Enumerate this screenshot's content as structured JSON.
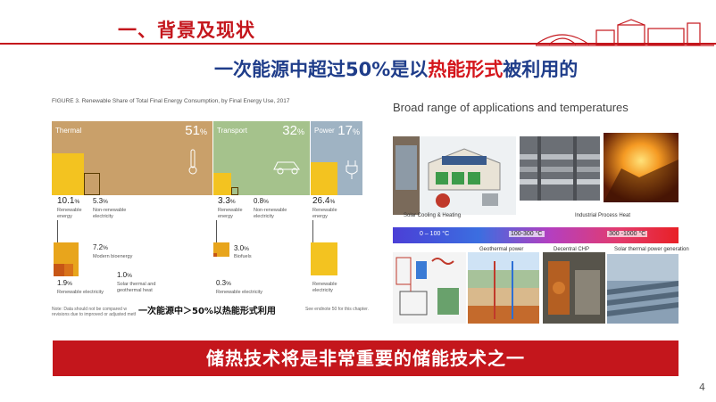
{
  "header": {
    "title": "一、背景及现状"
  },
  "subtitle": {
    "prefix": "一次能源中超过50%是以",
    "highlight": "热能形式",
    "suffix": "被利用的"
  },
  "figure": {
    "title": "FIGURE 3.   Renewable Share of Total Final Energy Consumption, by Final Energy Use, 2017",
    "panels": [
      {
        "name": "Thermal",
        "percent": "51",
        "color": "#c9a06a"
      },
      {
        "name": "Transport",
        "percent": "32",
        "color": "#a5c28c"
      },
      {
        "name": "Power",
        "percent": "17",
        "color": "#9fb3c3"
      }
    ],
    "pct_sign": "%",
    "thermal": {
      "renewable": {
        "value": "10.1",
        "label1": "Renewable",
        "label2": "energy"
      },
      "nonrenewable": {
        "value": "5.3",
        "label1": "Non-renewable",
        "label2": "electricity"
      },
      "bioenergy": {
        "value": "7.2",
        "label": "Modern bioenergy"
      },
      "solar": {
        "value": "1.0",
        "label1": "Solar thermal and",
        "label2": "geothermal heat"
      },
      "renew_elec": {
        "value": "1.9",
        "label": "Renewable electricity"
      }
    },
    "transport": {
      "renewable": {
        "value": "3.3",
        "label1": "Renewable",
        "label2": "energy"
      },
      "nonrenewable": {
        "value": "0.8",
        "label1": "Non-renewable",
        "label2": "electricity"
      },
      "biofuels": {
        "value": "3.0",
        "label": "Biofuels"
      },
      "renew_elec": {
        "value": "0.3",
        "label": "Renewable electricity"
      }
    },
    "power": {
      "renewable": {
        "value": "26.4",
        "label1": "Renewable",
        "label2": "energy"
      },
      "renew_elec": {
        "label1": "Renewable",
        "label2": "electricity"
      }
    },
    "note1": "Note: Data should not be compared w",
    "note2": "revisions due to improved or adjusted methodology.",
    "note3": "See endnote 50 for this chapter."
  },
  "overlay_text": "一次能源中＞50%以热能形式利用",
  "applications": {
    "title": "Broad range of applications and temperatures",
    "labels": {
      "solar_cooling": "Solar Cooling & Heating",
      "industrial": "Industrial Process Heat",
      "geothermal": "Geothermal power",
      "chp": "Decentral CHP",
      "solar_thermal": "Solar thermal power generation"
    },
    "temps": [
      "0 – 100 °C",
      "100-300 °C",
      "300 -1000 °C"
    ]
  },
  "banner": {
    "text": "储热技术将是非常重要的储能技术之一"
  },
  "page_number": "4"
}
